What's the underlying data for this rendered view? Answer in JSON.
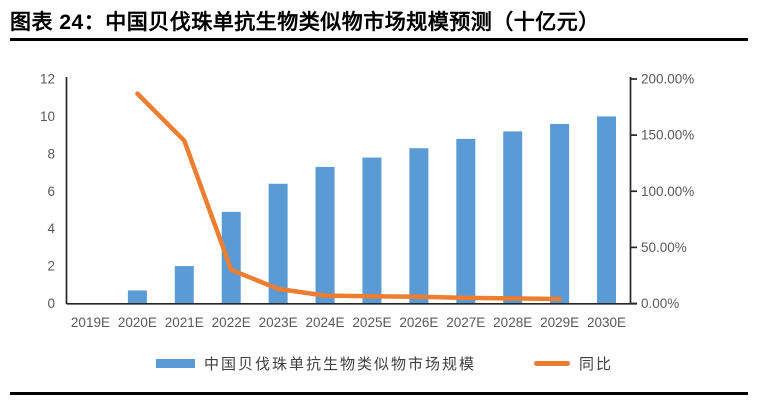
{
  "figure": {
    "title": "图表 24：中国贝伐珠单抗生物类似物市场规模预测（十亿元）"
  },
  "chart_data": {
    "type": "combo_bar_line",
    "title": "中国贝伐珠单抗生物类似物市场规模预测（十亿元）",
    "unit": "十亿元",
    "categories": [
      "2019E",
      "2020E",
      "2021E",
      "2022E",
      "2023E",
      "2024E",
      "2025E",
      "2026E",
      "2027E",
      "2028E",
      "2029E",
      "2030E"
    ],
    "series": [
      {
        "name": "中国贝伐珠单抗生物类似物市场规模",
        "type": "bar",
        "axis": "left",
        "color": "#5B9BD5",
        "values": [
          0,
          0.7,
          2.0,
          4.9,
          6.4,
          7.3,
          7.8,
          8.3,
          8.8,
          9.2,
          9.6,
          10.0
        ]
      },
      {
        "name": "同比",
        "type": "line",
        "axis": "right",
        "color": "#ED7D31",
        "values_percent": [
          null,
          187,
          145,
          30,
          13,
          7,
          6.5,
          6,
          5,
          4.5,
          4,
          null
        ]
      }
    ],
    "left_axis": {
      "min": 0,
      "max": 12,
      "ticks": [
        0,
        2,
        4,
        6,
        8,
        10,
        12
      ],
      "tick_labels": [
        "0",
        "2",
        "4",
        "6",
        "8",
        "10",
        "12"
      ]
    },
    "right_axis": {
      "min": 0,
      "max": 200,
      "ticks": [
        0,
        50,
        100,
        150,
        200
      ],
      "tick_labels": [
        "0.00%",
        "50.00%",
        "100.00%",
        "150.00%",
        "200.00%"
      ]
    },
    "legend_position": "bottom",
    "grid": false
  },
  "colors": {
    "bar": "#5B9BD5",
    "line": "#ED7D31",
    "tick_label": "#595959",
    "axis_line": "#262626",
    "title": "#000000",
    "rule": "#000000"
  }
}
